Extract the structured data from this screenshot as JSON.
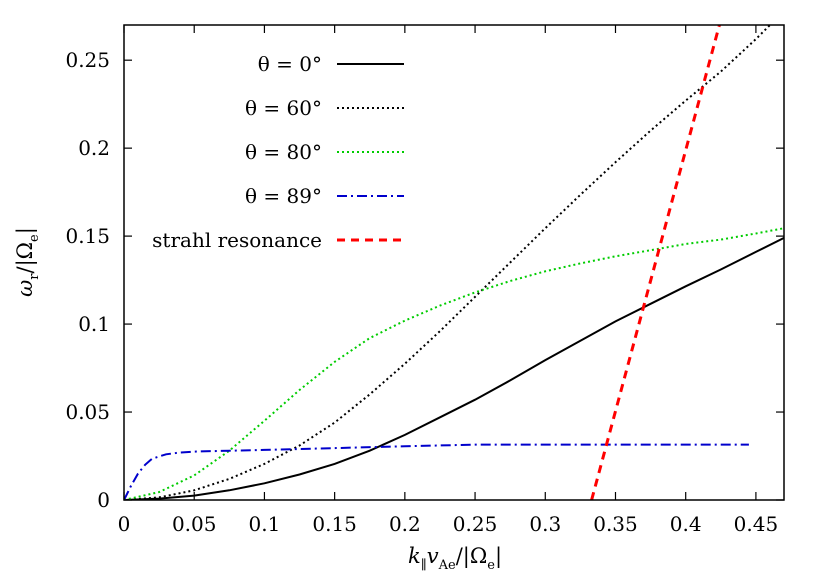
{
  "chart_data": {
    "type": "line",
    "title": "",
    "xlabel": "k∥vAe/|Ωe|",
    "ylabel": "ωr/|Ωe|",
    "xlim": [
      0,
      0.47
    ],
    "ylim": [
      0,
      0.27
    ],
    "xticks": [
      "0",
      "0.05",
      "0.1",
      "0.15",
      "0.2",
      "0.25",
      "0.3",
      "0.35",
      "0.4",
      "0.45"
    ],
    "yticks": [
      "0",
      "0.05",
      "0.1",
      "0.15",
      "0.2",
      "0.25"
    ],
    "grid": false,
    "legend_position": "top-left",
    "series": [
      {
        "name": "θ = 0°",
        "color": "#000000",
        "dash": "solid",
        "x": [
          0,
          0.025,
          0.05,
          0.075,
          0.1,
          0.125,
          0.15,
          0.175,
          0.2,
          0.225,
          0.25,
          0.275,
          0.3,
          0.325,
          0.35,
          0.375,
          0.4,
          0.425,
          0.45,
          0.47
        ],
        "y": [
          0,
          0.0008,
          0.0025,
          0.0055,
          0.0095,
          0.0145,
          0.0205,
          0.028,
          0.037,
          0.047,
          0.057,
          0.068,
          0.0795,
          0.0905,
          0.1015,
          0.1115,
          0.1215,
          0.131,
          0.141,
          0.149
        ]
      },
      {
        "name": "θ = 60°",
        "color": "#000000",
        "dash": "dotted",
        "x": [
          0,
          0.025,
          0.05,
          0.075,
          0.1,
          0.125,
          0.15,
          0.175,
          0.2,
          0.225,
          0.25,
          0.275,
          0.3,
          0.325,
          0.35,
          0.375,
          0.4,
          0.425,
          0.45,
          0.46
        ],
        "y": [
          0,
          0.0015,
          0.0055,
          0.012,
          0.0205,
          0.031,
          0.044,
          0.06,
          0.0775,
          0.096,
          0.1155,
          0.135,
          0.1545,
          0.1735,
          0.192,
          0.21,
          0.227,
          0.2435,
          0.262,
          0.27
        ]
      },
      {
        "name": "θ = 80°",
        "color": "#00cc00",
        "dash": "dotted",
        "x": [
          0,
          0.025,
          0.05,
          0.075,
          0.1,
          0.125,
          0.15,
          0.175,
          0.2,
          0.225,
          0.25,
          0.275,
          0.3,
          0.325,
          0.35,
          0.375,
          0.4,
          0.425,
          0.45,
          0.47
        ],
        "y": [
          0,
          0.0045,
          0.014,
          0.028,
          0.045,
          0.0625,
          0.0785,
          0.092,
          0.102,
          0.1105,
          0.118,
          0.1245,
          0.13,
          0.1345,
          0.1385,
          0.142,
          0.1455,
          0.148,
          0.1515,
          0.1545
        ]
      },
      {
        "name": "θ = 89°",
        "color": "#0000cc",
        "dash": "dashdot",
        "x": [
          0,
          0.005,
          0.01,
          0.015,
          0.02,
          0.03,
          0.04,
          0.05,
          0.075,
          0.1,
          0.15,
          0.2,
          0.25,
          0.3,
          0.35,
          0.4,
          0.445
        ],
        "y": [
          0,
          0.008,
          0.015,
          0.02,
          0.0235,
          0.026,
          0.027,
          0.0275,
          0.028,
          0.0285,
          0.0295,
          0.0305,
          0.0315,
          0.0315,
          0.0315,
          0.0315,
          0.0315
        ]
      },
      {
        "name": "strahl resonance",
        "color": "#ff0000",
        "dash": "dashed",
        "x": [
          0.333,
          0.424
        ],
        "y": [
          0,
          0.27
        ]
      }
    ]
  }
}
